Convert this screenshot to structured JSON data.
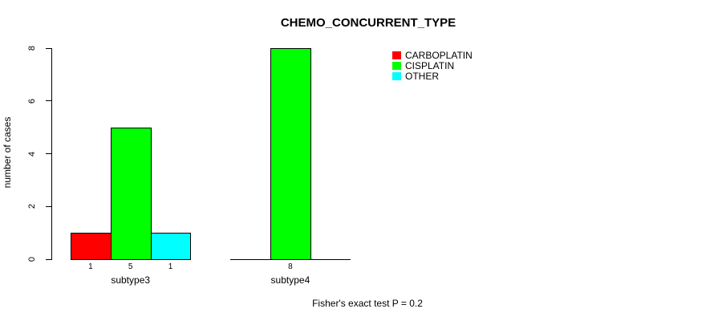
{
  "chart_data": {
    "type": "bar",
    "title": "CHEMO_CONCURRENT_TYPE",
    "xlabel": "",
    "ylabel": "number of cases",
    "ylim": [
      0,
      8
    ],
    "yticks": [
      0,
      2,
      4,
      6,
      8
    ],
    "grid": false,
    "legend_position": "top-right-inside",
    "categories": [
      "subtype3",
      "subtype4"
    ],
    "series": [
      {
        "name": "CARBOPLATIN",
        "color": "#ff0000",
        "values": [
          1,
          0
        ]
      },
      {
        "name": "CISPLATIN",
        "color": "#00ff00",
        "values": [
          5,
          8
        ]
      },
      {
        "name": "OTHER",
        "color": "#00ffff",
        "values": [
          1,
          0
        ]
      }
    ],
    "bar_count_labels_shown_for_nonzero_only": true,
    "annotation": "Fisher's exact test P = 0.2"
  }
}
